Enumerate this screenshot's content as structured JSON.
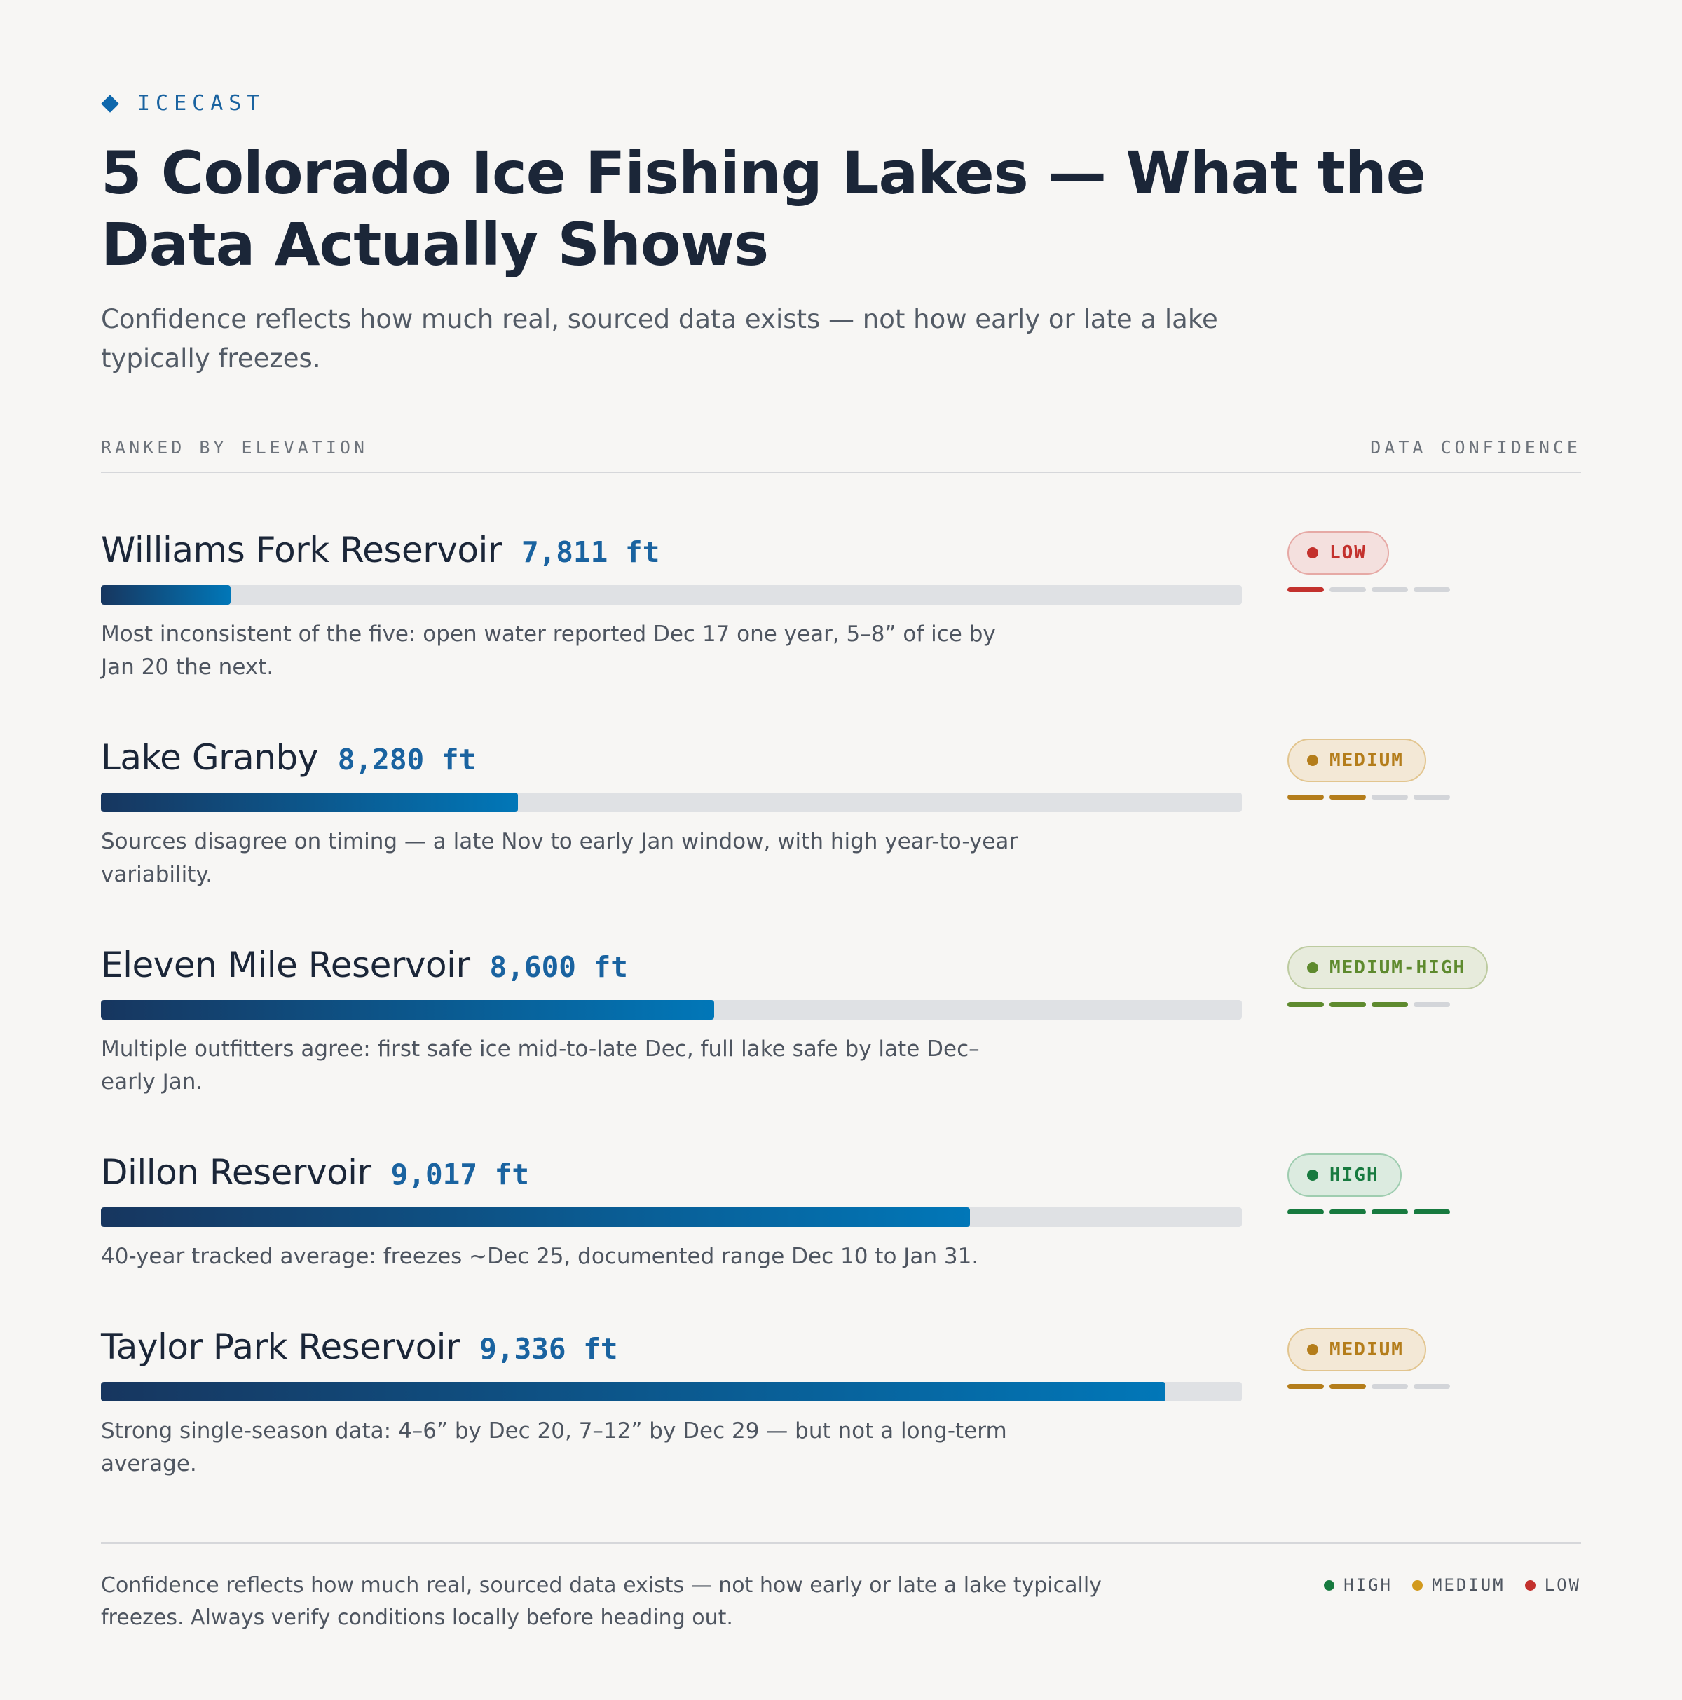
{
  "brand": {
    "name": "ICECAST"
  },
  "header": {
    "title": "5 Colorado Ice Fishing Lakes — What the Data Actually Shows",
    "subtitle": "Confidence reflects how much real, sourced data exists — not how early or late a lake typically freezes."
  },
  "columns": {
    "left": "RANKED BY ELEVATION",
    "right": "DATA CONFIDENCE"
  },
  "colors": {
    "accent": "#1a63a0",
    "bar_start": "#17365f",
    "bar_end": "#0177b8",
    "track": "#dfe1e4",
    "low": "#c3312d",
    "medium": "#b47d1b",
    "medium_high": "#5e8a2e",
    "high": "#177a3f"
  },
  "chart_data": {
    "type": "bar",
    "orientation": "horizontal",
    "categories": [
      "Williams Fork Reservoir",
      "Lake Granby",
      "Eleven Mile Reservoir",
      "Dillon Reservoir",
      "Taylor Park Reservoir"
    ],
    "values": [
      7811,
      8280,
      8600,
      9017,
      9336
    ],
    "unit": "ft",
    "xlim": [
      7600,
      9460
    ]
  },
  "lakes": [
    {
      "name": "Williams Fork Reservoir",
      "elevation": "7,811 ft",
      "note": "Most inconsistent of the five: open water reported Dec 17 one year, 5–8” of ice by Jan 20 the next.",
      "confidence": {
        "label": "LOW",
        "level": 1,
        "of": 4,
        "color": "#c3312d",
        "bg": "#f4e0de",
        "border": "#e6a9a5"
      }
    },
    {
      "name": "Lake Granby",
      "elevation": "8,280 ft",
      "note": "Sources disagree on timing — a late Nov to early Jan window, with high year-to-year variability.",
      "confidence": {
        "label": "MEDIUM",
        "level": 2,
        "of": 4,
        "color": "#b47d1b",
        "bg": "#f3e8d6",
        "border": "#e2c58f"
      }
    },
    {
      "name": "Eleven Mile Reservoir",
      "elevation": "8,600 ft",
      "note": "Multiple outfitters agree: first safe ice mid-to-late Dec, full lake safe by late Dec–early Jan.",
      "confidence": {
        "label": "MEDIUM-HIGH",
        "level": 3,
        "of": 4,
        "color": "#5e8a2e",
        "bg": "#e7ebdc",
        "border": "#bdcba0"
      }
    },
    {
      "name": "Dillon Reservoir",
      "elevation": "9,017 ft",
      "note": "40-year tracked average: freezes ~Dec 25, documented range Dec 10 to Jan 31.",
      "confidence": {
        "label": "HIGH",
        "level": 4,
        "of": 4,
        "color": "#177a3f",
        "bg": "#dcebe0",
        "border": "#9fcdb0"
      }
    },
    {
      "name": "Taylor Park Reservoir",
      "elevation": "9,336 ft",
      "note": "Strong single-season data: 4–6” by Dec 20, 7–12” by Dec 29 — but not a long-term average.",
      "confidence": {
        "label": "MEDIUM",
        "level": 2,
        "of": 4,
        "color": "#b47d1b",
        "bg": "#f3e8d6",
        "border": "#e2c58f"
      }
    }
  ],
  "footer": {
    "note": "Confidence reflects how much real, sourced data exists — not how early or late a lake typically freezes. Always verify conditions locally before heading out.",
    "legend": [
      {
        "label": "HIGH",
        "color": "#177a3f"
      },
      {
        "label": "MEDIUM",
        "color": "#d29a1e"
      },
      {
        "label": "LOW",
        "color": "#c3312d"
      }
    ]
  }
}
